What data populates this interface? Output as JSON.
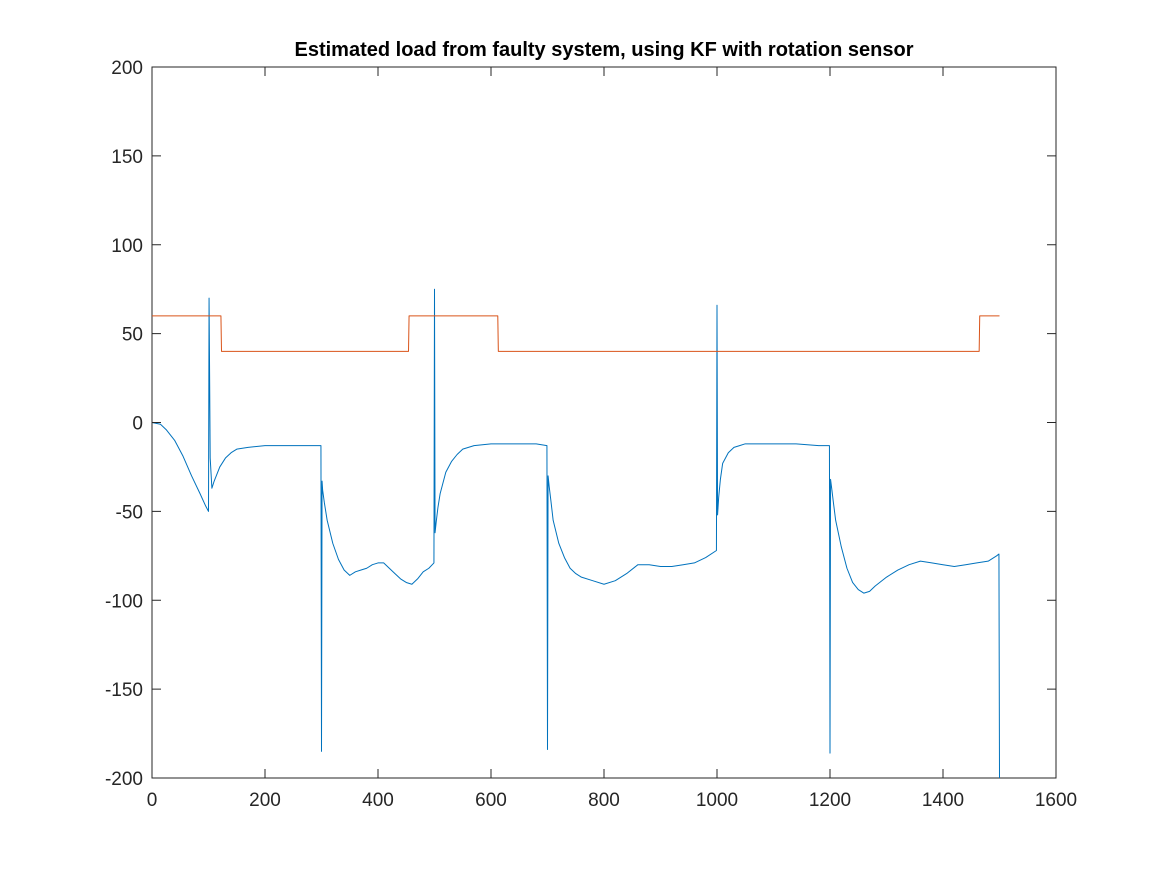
{
  "chart_data": {
    "type": "line",
    "title": "Estimated load from faulty system, using KF with rotation sensor",
    "xlabel": "",
    "ylabel": "",
    "xlim": [
      0,
      1600
    ],
    "ylim": [
      -200,
      200
    ],
    "xticks": [
      0,
      200,
      400,
      600,
      800,
      1000,
      1200,
      1400,
      1600
    ],
    "yticks": [
      -200,
      -150,
      -100,
      -50,
      0,
      50,
      100,
      150,
      200
    ],
    "xtick_labels": [
      "0",
      "200",
      "400",
      "600",
      "800",
      "1000",
      "1200",
      "1400",
      "1600"
    ],
    "ytick_labels": [
      "-200",
      "-150",
      "-100",
      "-50",
      "0",
      "50",
      "100",
      "150",
      "200"
    ],
    "grid": false,
    "box": true,
    "series": [
      {
        "color": "#0072BD",
        "x": [
          0,
          15,
          25,
          40,
          55,
          70,
          85,
          95,
          100,
          101,
          103,
          106,
          110,
          120,
          130,
          140,
          150,
          170,
          200,
          240,
          280,
          299,
          300,
          301,
          302,
          305,
          310,
          320,
          330,
          340,
          350,
          360,
          370,
          380,
          390,
          400,
          410,
          420,
          430,
          440,
          450,
          460,
          470,
          480,
          490,
          499,
          500,
          501,
          503,
          506,
          510,
          520,
          530,
          540,
          550,
          570,
          600,
          640,
          680,
          699,
          700,
          701,
          703,
          706,
          710,
          720,
          730,
          740,
          750,
          760,
          780,
          800,
          820,
          840,
          860,
          880,
          900,
          920,
          940,
          960,
          980,
          999,
          1000,
          1001,
          1003,
          1006,
          1010,
          1020,
          1030,
          1040,
          1050,
          1070,
          1100,
          1140,
          1180,
          1199,
          1200,
          1201,
          1203,
          1206,
          1210,
          1220,
          1230,
          1240,
          1250,
          1260,
          1270,
          1280,
          1300,
          1320,
          1340,
          1360,
          1380,
          1400,
          1420,
          1440,
          1460,
          1480,
          1495,
          1499,
          1500
        ],
        "y": [
          0,
          -1,
          -4,
          -10,
          -19,
          -30,
          -40,
          -47,
          -50,
          70,
          -20,
          -37,
          -33,
          -25,
          -20,
          -17,
          -15,
          -14,
          -13,
          -13,
          -13,
          -13,
          -185,
          -33,
          -38,
          -45,
          -55,
          -68,
          -77,
          -83,
          -86,
          -84,
          -83,
          -82,
          -80,
          -79,
          -79,
          -82,
          -85,
          -88,
          -90,
          -91,
          -88,
          -84,
          -82,
          -79,
          75,
          -62,
          -56,
          -48,
          -40,
          -28,
          -22,
          -18,
          -15,
          -13,
          -12,
          -12,
          -12,
          -13,
          -184,
          -30,
          -36,
          -44,
          -55,
          -68,
          -76,
          -82,
          -85,
          -87,
          -89,
          -91,
          -89,
          -85,
          -80,
          -80,
          -81,
          -81,
          -80,
          -79,
          -76,
          -72,
          66,
          -52,
          -42,
          -32,
          -23,
          -17,
          -14,
          -13,
          -12,
          -12,
          -12,
          -12,
          -13,
          -13,
          -186,
          -32,
          -37,
          -45,
          -55,
          -70,
          -82,
          -90,
          -94,
          -96,
          -95,
          -92,
          -87,
          -83,
          -80,
          -78,
          -79,
          -80,
          -81,
          -80,
          -79,
          -78,
          -75,
          -74,
          -200
        ]
      },
      {
        "color": "#D95319",
        "x": [
          0,
          122,
          123,
          454,
          455,
          612,
          613,
          1464,
          1465,
          1500
        ],
        "y": [
          60,
          60,
          40,
          40,
          60,
          60,
          40,
          40,
          60,
          60
        ]
      }
    ]
  }
}
